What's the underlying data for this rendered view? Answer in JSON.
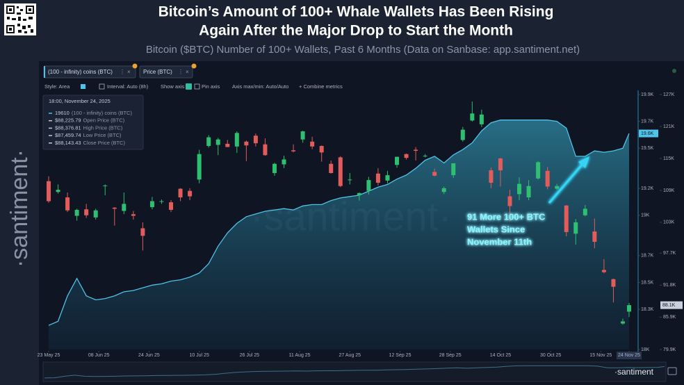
{
  "chart_data": {
    "type": "candlestick",
    "title": [
      "Bitcoin’s Amount of 100+ Whale Wallets Has Been Rising",
      "Again After the Major Drop to Start the Month"
    ],
    "subtitle": "Bitcoin ($BTC) Number of 100+ Wallets, Past 6 Months (Data on Sanbase: app.santiment.net)",
    "x": [
      "23 May 25",
      "26 May 25",
      "29 May 25",
      "01 Jun 25",
      "04 Jun 25",
      "07 Jun 25",
      "10 Jun 25",
      "13 Jun 25",
      "16 Jun 25",
      "19 Jun 25",
      "22 Jun 25",
      "25 Jun 25",
      "28 Jun 25",
      "01 Jul 25",
      "04 Jul 25",
      "07 Jul 25",
      "10 Jul 25",
      "13 Jul 25",
      "16 Jul 25",
      "19 Jul 25",
      "22 Jul 25",
      "25 Jul 25",
      "28 Jul 25",
      "31 Jul 25",
      "03 Aug 25",
      "06 Aug 25",
      "09 Aug 25",
      "12 Aug 25",
      "15 Aug 25",
      "18 Aug 25",
      "21 Aug 25",
      "24 Aug 25",
      "27 Aug 25",
      "30 Aug 25",
      "02 Sep 25",
      "05 Sep 25",
      "08 Sep 25",
      "11 Sep 25",
      "14 Sep 25",
      "17 Sep 25",
      "20 Sep 25",
      "23 Sep 25",
      "26 Sep 25",
      "29 Sep 25",
      "02 Oct 25",
      "05 Oct 25",
      "08 Oct 25",
      "11 Oct 25",
      "14 Oct 25",
      "17 Oct 25",
      "20 Oct 25",
      "23 Oct 25",
      "26 Oct 25",
      "29 Oct 25",
      "01 Nov 25",
      "04 Nov 25",
      "07 Nov 25",
      "10 Nov 25",
      "13 Nov 25",
      "16 Nov 25",
      "19 Nov 25",
      "22 Nov 25",
      "24 Nov 25"
    ],
    "xticks": [
      "23 May 25",
      "08 Jun 25",
      "24 Jun 25",
      "10 Jul 25",
      "26 Jul 25",
      "11 Aug 25",
      "27 Aug 25",
      "12 Sep 25",
      "28 Sep 25",
      "14 Oct 25",
      "30 Oct 25",
      "15 Nov 25",
      "24 Nov 25"
    ],
    "series": [
      {
        "name": "(100 - infinity) coins (BTC)",
        "type": "area",
        "color": "#4fc3e8",
        "last_label": "19.6K",
        "values": [
          18180,
          18210,
          18400,
          18530,
          18400,
          18370,
          18380,
          18400,
          18430,
          18440,
          18460,
          18480,
          18490,
          18510,
          18520,
          18540,
          18570,
          18640,
          18770,
          18870,
          18940,
          18990,
          19010,
          19030,
          19040,
          19050,
          19040,
          19070,
          19080,
          19080,
          19110,
          19130,
          19140,
          19150,
          19180,
          19210,
          19230,
          19270,
          19300,
          19350,
          19410,
          19440,
          19390,
          19450,
          19490,
          19540,
          19630,
          19690,
          19710,
          19710,
          19710,
          19710,
          19710,
          19710,
          19700,
          19650,
          19440,
          19440,
          19480,
          19470,
          19480,
          19500,
          19610
        ]
      },
      {
        "name": "Price (BTC)",
        "type": "candlestick",
        "axis": "y2",
        "up_color": "#2fbf71",
        "down_color": "#e25c5c",
        "last_label": "88.1K",
        "open": [
          111000,
          109000,
          108000,
          104600,
          105800,
          104300,
          110200,
          106100,
          105500,
          104900,
          102300,
          106200,
          107300,
          107100,
          109600,
          109200,
          111300,
          117500,
          117700,
          117900,
          117400,
          118300,
          119400,
          117800,
          112500,
          114100,
          116700,
          118700,
          118300,
          117500,
          114200,
          115400,
          111300,
          108400,
          109200,
          112400,
          111100,
          114000,
          116000,
          116800,
          115700,
          112700,
          109000,
          112100,
          118600,
          122200,
          121500,
          113000,
          115200,
          108200,
          108600,
          108000,
          111500,
          112900,
          109600,
          106500,
          101300,
          104700,
          101700,
          94600,
          92900,
          84700,
          86900
        ],
        "high": [
          111900,
          110400,
          108900,
          105900,
          106800,
          105900,
          110400,
          106200,
          108900,
          105500,
          103400,
          108100,
          107600,
          107500,
          109700,
          109700,
          116800,
          119500,
          119000,
          118600,
          120200,
          118500,
          119800,
          118900,
          114400,
          115700,
          117800,
          120300,
          119200,
          117600,
          114800,
          115600,
          112500,
          108900,
          111800,
          113400,
          112900,
          115500,
          116100,
          117300,
          116000,
          113300,
          110000,
          114300,
          121000,
          125700,
          124200,
          113500,
          115300,
          109400,
          111700,
          111200,
          114700,
          113600,
          110500,
          106600,
          104000,
          106600,
          104100,
          96600,
          93000,
          85600,
          88500
        ],
        "low": [
          107000,
          108700,
          105300,
          103700,
          104200,
          103900,
          108400,
          102800,
          104900,
          103900,
          98200,
          105800,
          106800,
          105300,
          107300,
          107500,
          110600,
          117200,
          115800,
          117300,
          116200,
          114700,
          117400,
          115700,
          112000,
          113400,
          116300,
          118100,
          116900,
          114600,
          112400,
          109900,
          110400,
          107400,
          108500,
          110200,
          110600,
          113500,
          115000,
          114800,
          115400,
          111900,
          108600,
          111600,
          118300,
          122000,
          121000,
          109700,
          110000,
          103600,
          107500,
          107500,
          111300,
          109500,
          109400,
          100800,
          99300,
          104500,
          98600,
          94000,
          88600,
          84500,
          85900
        ],
        "close": [
          107300,
          109400,
          105600,
          105700,
          104700,
          105600,
          110200,
          105900,
          106800,
          104600,
          100900,
          107300,
          107300,
          105700,
          108000,
          108200,
          116000,
          119100,
          118700,
          117300,
          119900,
          117600,
          118000,
          115800,
          114200,
          115000,
          116500,
          120200,
          117400,
          116300,
          112500,
          110100,
          111300,
          108800,
          111200,
          110700,
          112100,
          115500,
          115300,
          116600,
          115700,
          112000,
          109700,
          114300,
          120500,
          123500,
          123300,
          110700,
          113000,
          106400,
          110500,
          110100,
          114500,
          110000,
          110100,
          101600,
          103400,
          105900,
          99800,
          94200,
          91500,
          85100,
          88100
        ]
      }
    ],
    "ylim": [
      18000,
      19900
    ],
    "yticks": [
      {
        "value": 19900,
        "label": "19.9K"
      },
      {
        "value": 19700,
        "label": "19.7K"
      },
      {
        "value": 19500,
        "label": "19.5K"
      },
      {
        "value": 19200,
        "label": "19.2K"
      },
      {
        "value": 19000,
        "label": "19K"
      },
      {
        "value": 18700,
        "label": "18.7K"
      },
      {
        "value": 18500,
        "label": "18.5K"
      },
      {
        "value": 18300,
        "label": "18.3K"
      },
      {
        "value": 18000,
        "label": "18K"
      }
    ],
    "y2lim": [
      79900,
      127000
    ],
    "y2ticks": [
      {
        "value": 127000,
        "label": "127K"
      },
      {
        "value": 121100,
        "label": "121K"
      },
      {
        "value": 115200,
        "label": "115K"
      },
      {
        "value": 109300,
        "label": "109K"
      },
      {
        "value": 103400,
        "label": "103K"
      },
      {
        "value": 97700,
        "label": "97.7K"
      },
      {
        "value": 91800,
        "label": "91.8K"
      },
      {
        "value": 85900,
        "label": "85.9K"
      },
      {
        "value": 79900,
        "label": "79.9K"
      }
    ],
    "annotation": [
      "91 More 100+ BTC",
      "Wallets Since",
      "November 11th"
    ]
  },
  "ui": {
    "brand": "·santiment·",
    "brand_small": "·santiment",
    "toolbar": [
      "Style: Area",
      "Interval: Auto (8h)",
      "Show axis",
      "Pin axis",
      "Axis max/min: Auto/Auto",
      "+ Combine metrics"
    ],
    "tooltip": {
      "time": "18:00, November 24, 2025",
      "rows": [
        {
          "value": "19610",
          "label": "(100 - infinity) coins (BTC)"
        },
        {
          "value": "$88,225.79",
          "label": "Open Price (BTC)"
        },
        {
          "value": "$88,376.81",
          "label": "High Price (BTC)"
        },
        {
          "value": "$87,459.74",
          "label": "Low Price (BTC)"
        },
        {
          "value": "$88,143.43",
          "label": "Close Price (BTC)"
        }
      ]
    }
  }
}
